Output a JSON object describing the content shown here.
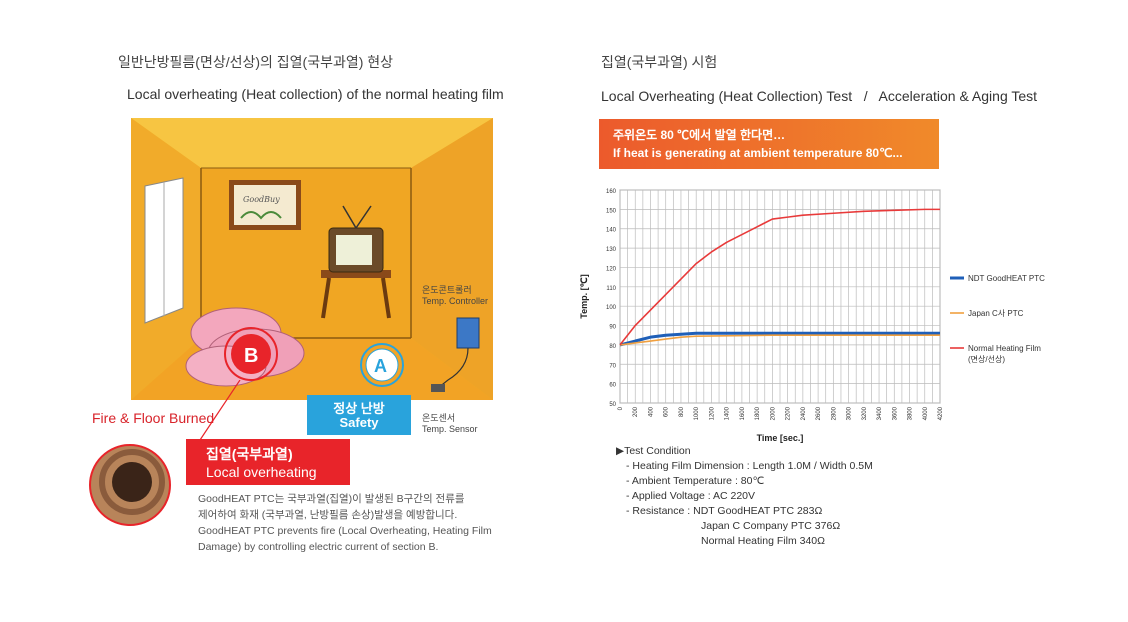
{
  "left": {
    "title_ko": "일반난방필름(면상/선상)의 집열(국부과열) 현상",
    "title_en": "Local overheating (Heat collection) of the normal heating film",
    "picture_text": "GoodBuy",
    "controller_ko": "온도콘트롤러",
    "controller_en": "Temp. Controller",
    "sensor_ko": "온도센서",
    "sensor_en": "Temp. Sensor",
    "marker_a": "A",
    "marker_b": "B",
    "fire_label": "Fire & Floor Burned",
    "banner_ko": "집열(국부과열)",
    "banner_en": "Local overheating",
    "safety_ko": "정상 난방",
    "safety_en": "Safety",
    "desc": [
      "GoodHEAT PTC는 국부과열(집열)이 발생된 B구간의 전류를",
      "제어하여 화재 (국부과열, 난방필름 손상)발생을 예방합니다.",
      "GoodHEAT PTC prevents fire (Local Overheating, Heating Film",
      "Damage) by controlling electric current of section B."
    ]
  },
  "right": {
    "title_ko": "집열(국부과열) 시험",
    "title_en": "Local Overheating (Heat Collection) Test   /   Acceleration & Aging Test",
    "banner_ko": "주위온도 80 ℃에서 발열 한다면…",
    "banner_en": "If heat is generating at ambient temperature 80℃...",
    "conditions_title": "▶Test Condition",
    "conditions": [
      "- Heating Film Dimension : Length 1.0M / Width 0.5M",
      "- Ambient Temperature : 80℃",
      "- Applied Voltage : AC 220V",
      "- Resistance : NDT GoodHEAT PTC  283Ω"
    ],
    "conditions_cont": [
      "Japan C Company PTC  376Ω",
      "Normal Heating Film  340Ω"
    ]
  },
  "colors": {
    "ndt": "#1f5fb8",
    "japan": "#f0a040",
    "normal": "#e83a3a",
    "red_banner": "#e8242a",
    "safety_blue": "#29a3dc"
  },
  "chart_data": {
    "type": "line",
    "xlabel": "Time [sec.]",
    "ylabel": "Temp. [℃]",
    "ylim": [
      50,
      160
    ],
    "yticks": [
      50,
      60,
      70,
      80,
      90,
      100,
      110,
      120,
      130,
      140,
      150,
      160
    ],
    "xlim": [
      0,
      4200
    ],
    "xticks": [
      0,
      200,
      400,
      600,
      800,
      1000,
      1200,
      1400,
      1600,
      1800,
      2000,
      2200,
      2400,
      2600,
      2800,
      3000,
      3200,
      3400,
      3600,
      3800,
      4000,
      4200
    ],
    "grid": true,
    "legend_position": "right",
    "series": [
      {
        "name": "NDT GoodHEAT PTC",
        "color": "#1f5fb8",
        "width": 3,
        "x": [
          0,
          200,
          400,
          600,
          800,
          1000,
          1200,
          2000,
          3000,
          4200
        ],
        "y": [
          80,
          82,
          84,
          85,
          85.5,
          86,
          86,
          86,
          86,
          86
        ]
      },
      {
        "name": "Japan C사 PTC",
        "color": "#f0a040",
        "width": 1.6,
        "x": [
          0,
          200,
          400,
          600,
          800,
          1000,
          2000,
          3000,
          4200
        ],
        "y": [
          80,
          81,
          82,
          83,
          84,
          84.5,
          85,
          85,
          85
        ]
      },
      {
        "name": "Normal Heating Film (면상/선상)",
        "color": "#e83a3a",
        "width": 1.6,
        "x": [
          0,
          200,
          400,
          600,
          800,
          1000,
          1200,
          1400,
          1600,
          1800,
          2000,
          2200,
          2400,
          2800,
          3200,
          3600,
          4000,
          4200
        ],
        "y": [
          80,
          90,
          98,
          106,
          114,
          122,
          128,
          133,
          137,
          141,
          145,
          146,
          147,
          148,
          149,
          149.5,
          150,
          150
        ]
      }
    ]
  }
}
